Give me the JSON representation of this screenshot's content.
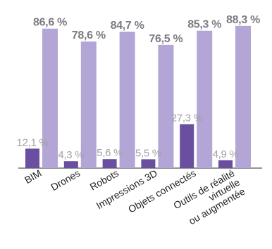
{
  "chart_data": {
    "type": "bar",
    "categories": [
      "BIM",
      "Drones",
      "Robots",
      "Impressions 3D",
      "Objets connectés",
      "Outils de réalité virtuelle ou augmentée"
    ],
    "category_lines": [
      [
        "BIM"
      ],
      [
        "Drones"
      ],
      [
        "Robots"
      ],
      [
        "Impressions 3D"
      ],
      [
        "Objets connectés"
      ],
      [
        "Outils de réalité",
        "virtuelle",
        "ou augmentée"
      ]
    ],
    "series": [
      {
        "values": [
          12.1,
          4.3,
          5.6,
          5.5,
          27.3,
          4.9
        ],
        "labels": [
          "12,1 %",
          "4,3 %",
          "5,6 %",
          "5,5 %",
          "27,3 %",
          "4,9 %"
        ],
        "color": "#6a4fa0"
      },
      {
        "values": [
          86.6,
          78.6,
          84.7,
          76.5,
          85.3,
          88.3
        ],
        "labels": [
          "86,6 %",
          "78,6 %",
          "84,7 %",
          "76,5 %",
          "85,3 %",
          "88,3 %"
        ],
        "color": "#b3a6d6"
      }
    ],
    "ylim": [
      0,
      100
    ],
    "grid": false,
    "legend": "none",
    "title": "",
    "xlabel": "",
    "ylabel": ""
  }
}
